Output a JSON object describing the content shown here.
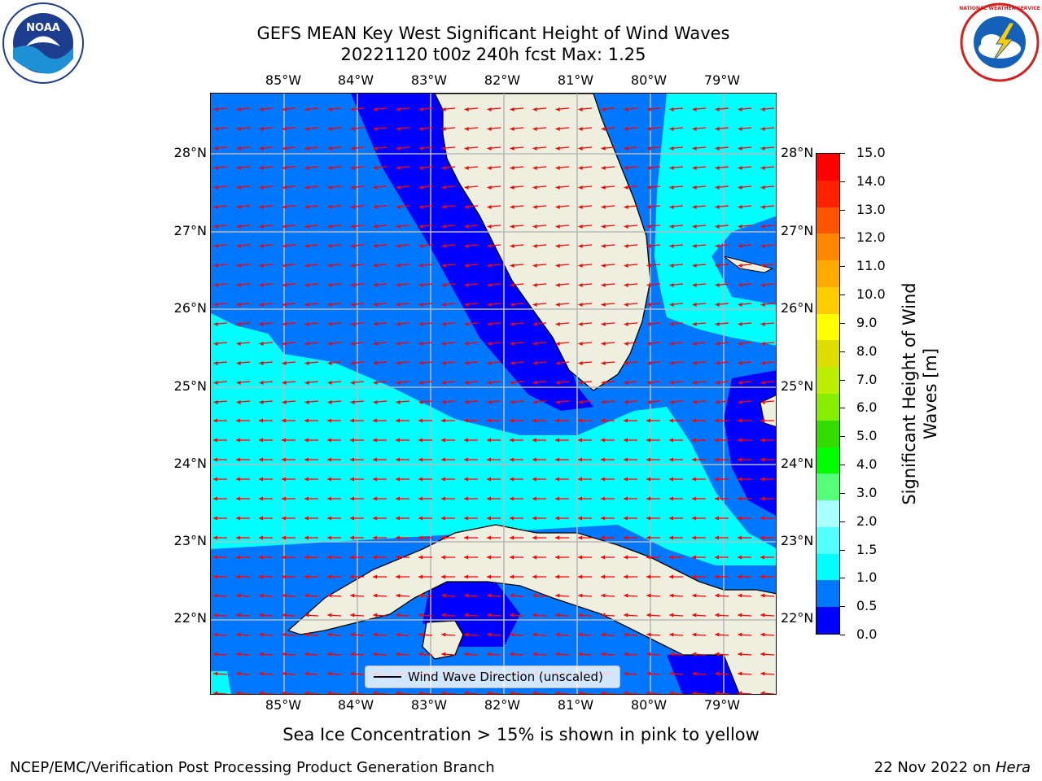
{
  "header": {
    "title": "GEFS MEAN Key West Significant Height of Wind Waves",
    "subtitle": "20221120 t00z 240h fcst   Max: 1.25"
  },
  "logos": {
    "left": "noaa-logo",
    "left_text": "NOAA",
    "right": "nws-logo",
    "right_text": "NATIONAL WEATHER SERVICE"
  },
  "map": {
    "extent": {
      "lon_min": -86.0,
      "lon_max": -78.3,
      "lat_min": 21.0,
      "lat_max": 28.75
    },
    "lon_ticks": [
      "85°W",
      "84°W",
      "83°W",
      "82°W",
      "81°W",
      "80°W",
      "79°W"
    ],
    "lat_ticks": [
      "28°N",
      "27°N",
      "26°N",
      "25°N",
      "24°N",
      "23°N",
      "22°N"
    ],
    "legend_label": "Wind Wave Direction (unscaled)",
    "arrow_color": "#ff0000",
    "land_color": "#efefdf"
  },
  "colorbar": {
    "label": "Significant Height of Wind Waves [m]",
    "ticks": [
      "0.0",
      "0.5",
      "1.0",
      "1.5",
      "2.0",
      "3.0",
      "4.0",
      "5.0",
      "6.0",
      "7.0",
      "8.0",
      "9.0",
      "10.0",
      "11.0",
      "12.0",
      "13.0",
      "14.0",
      "15.0"
    ],
    "colors": [
      "#0000ff",
      "#0077ff",
      "#00ffff",
      "#55ffff",
      "#aaffff",
      "#55ff77",
      "#00ff00",
      "#33dd00",
      "#88ee00",
      "#bbee00",
      "#dddd00",
      "#ffff00",
      "#ffcc00",
      "#ffaa00",
      "#ff8800",
      "#ff5500",
      "#ff2200",
      "#ff0000"
    ]
  },
  "note": "Sea Ice Concentration > 15% is shown in pink to yellow",
  "footer": {
    "left": "NCEP/EMC/Verification Post Processing Product Generation Branch",
    "right_date": "22 Nov 2022 on ",
    "right_host": "Hera"
  }
}
